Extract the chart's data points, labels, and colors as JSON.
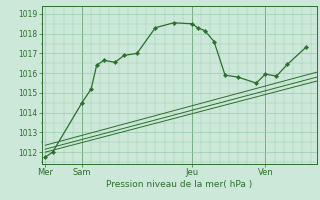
{
  "bg_color": "#cce8d8",
  "grid_color": "#99ccaa",
  "line_color": "#2d6e2d",
  "marker_color": "#2d6e2d",
  "title": "Pression niveau de la mer( hPa )",
  "xlabel_day_labels": [
    "Mer",
    "Sam",
    "Jeu",
    "Ven"
  ],
  "xlabel_day_positions": [
    0,
    2,
    8,
    12
  ],
  "xlim": [
    -0.2,
    14.8
  ],
  "ylim": [
    1011.4,
    1019.4
  ],
  "yticks": [
    1012,
    1013,
    1014,
    1015,
    1016,
    1017,
    1018,
    1019
  ],
  "series1_x": [
    0,
    0.4,
    2.0,
    2.5,
    2.8,
    3.2,
    3.8,
    4.3,
    5.0,
    6.0,
    7.0,
    8.0,
    8.3,
    8.7,
    9.2,
    9.8,
    10.5,
    11.5,
    12.0,
    12.6,
    13.2,
    14.2
  ],
  "series1_y": [
    1011.75,
    1012.0,
    1014.5,
    1015.2,
    1016.4,
    1016.65,
    1016.55,
    1016.9,
    1017.0,
    1018.3,
    1018.55,
    1018.5,
    1018.3,
    1018.15,
    1017.6,
    1015.9,
    1015.8,
    1015.5,
    1015.95,
    1015.85,
    1016.45,
    1017.3
  ],
  "series2_x": [
    0,
    14.8
  ],
  "series2_y": [
    1012.0,
    1015.6
  ],
  "series3_x": [
    0,
    14.8
  ],
  "series3_y": [
    1012.15,
    1015.8
  ],
  "series4_x": [
    0,
    14.8
  ],
  "series4_y": [
    1012.35,
    1016.05
  ],
  "vline_positions": [
    2,
    8,
    12
  ]
}
